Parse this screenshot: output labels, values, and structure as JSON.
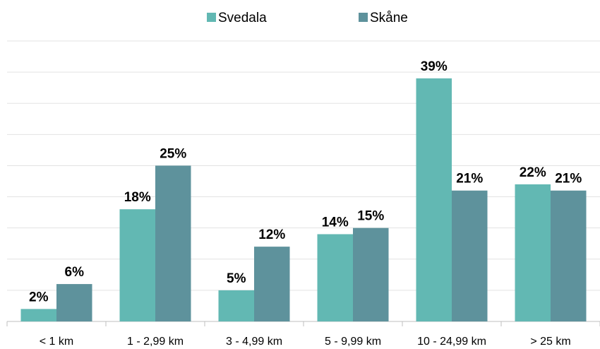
{
  "chart_data": {
    "type": "bar",
    "categories": [
      "< 1 km",
      "1 - 2,99 km",
      "3 - 4,99 km",
      "5 - 9,99 km",
      "10 - 24,99 km",
      "> 25 km"
    ],
    "series": [
      {
        "name": "Svedala",
        "color": "#62b8b3",
        "values": [
          2,
          18,
          5,
          14,
          39,
          22
        ],
        "value_labels": [
          "2%",
          "18%",
          "5%",
          "14%",
          "39%",
          "22%"
        ]
      },
      {
        "name": "Skåne",
        "color": "#5e929c",
        "values": [
          6,
          25,
          12,
          15,
          21,
          21
        ],
        "value_labels": [
          "6%",
          "25%",
          "12%",
          "15%",
          "21%",
          "21%"
        ]
      }
    ],
    "ylim": [
      0,
      45
    ],
    "yticks": [
      0,
      5,
      10,
      15,
      20,
      25,
      30,
      35,
      40,
      45
    ],
    "grid": true,
    "legend": "top"
  }
}
